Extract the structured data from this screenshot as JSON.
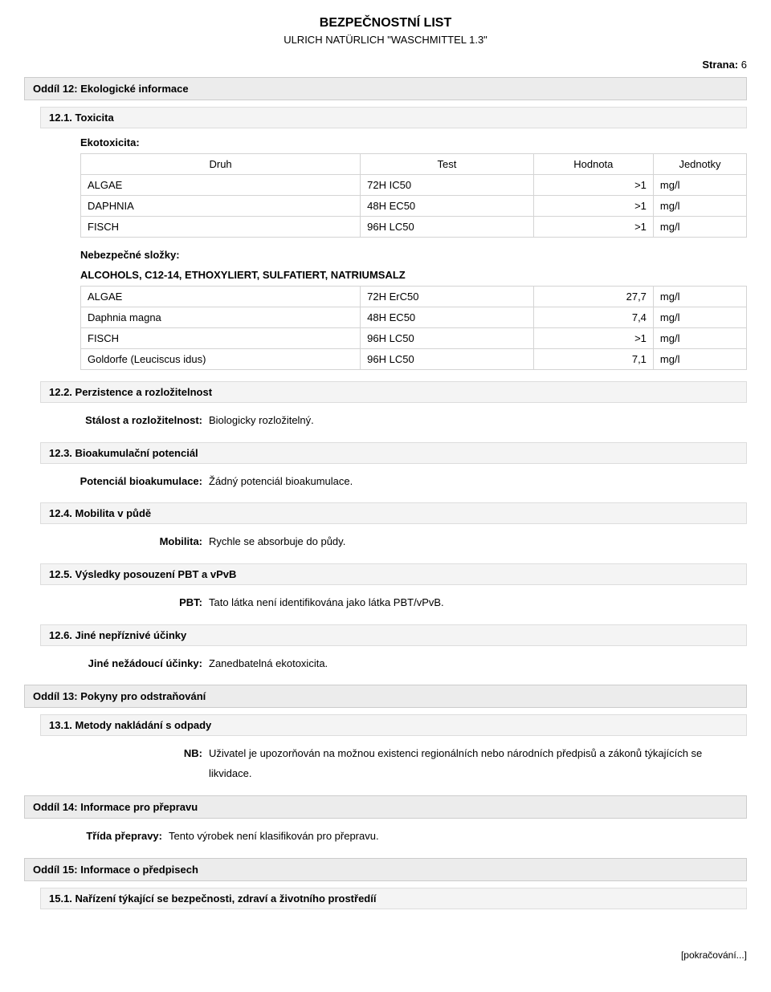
{
  "header": {
    "title": "BEZPEČNOSTNÍ LIST",
    "subtitle": "ULRICH NATÜRLICH \"WASCHMITTEL 1.3\"",
    "page_label": "Strana:",
    "page_number": "6"
  },
  "section12": {
    "title": "Oddíl 12: Ekologické informace",
    "s1": {
      "title": "12.1. Toxicita",
      "eco_label": "Ekotoxicita:",
      "table1": {
        "headers": [
          "Druh",
          "Test",
          "Hodnota",
          "Jednotky"
        ],
        "rows": [
          [
            "ALGAE",
            "72H IC50",
            ">1",
            "mg/l"
          ],
          [
            "DAPHNIA",
            "48H EC50",
            ">1",
            "mg/l"
          ],
          [
            "FISCH",
            "96H LC50",
            ">1",
            "mg/l"
          ]
        ],
        "col_widths": [
          "42%",
          "26%",
          "18%",
          "14%"
        ]
      },
      "hazard_label": "Nebezpečné složky:",
      "substance": "ALCOHOLS, C12-14, ETHOXYLIERT, SULFATIERT, NATRIUMSALZ",
      "table2": {
        "rows": [
          [
            "ALGAE",
            "72H ErC50",
            "27,7",
            "mg/l"
          ],
          [
            "Daphnia magna",
            "48H EC50",
            "7,4",
            "mg/l"
          ],
          [
            "FISCH",
            "96H LC50",
            ">1",
            "mg/l"
          ],
          [
            "Goldorfe (Leuciscus idus)",
            "96H LC50",
            "7,1",
            "mg/l"
          ]
        ],
        "col_widths": [
          "42%",
          "26%",
          "18%",
          "14%"
        ]
      }
    },
    "s2": {
      "title": "12.2. Perzistence a rozložitelnost",
      "label": "Stálost a rozložitelnost:",
      "value": "Biologicky rozložitelný."
    },
    "s3": {
      "title": "12.3. Bioakumulační potenciál",
      "label": "Potenciál bioakumulace:",
      "value": "Žádný potenciál bioakumulace."
    },
    "s4": {
      "title": "12.4. Mobilita v půdě",
      "label": "Mobilita:",
      "value": "Rychle se absorbuje do půdy."
    },
    "s5": {
      "title": "12.5. Výsledky posouzení PBT a vPvB",
      "label": "PBT:",
      "value": "Tato látka není identifikována jako látka PBT/vPvB."
    },
    "s6": {
      "title": "12.6. Jiné nepříznivé účinky",
      "label": "Jiné nežádoucí účinky:",
      "value": "Zanedbatelná ekotoxicita."
    }
  },
  "section13": {
    "title": "Oddíl 13: Pokyny pro odstraňování",
    "s1": {
      "title": "13.1. Metody nakládání s odpady",
      "label": "NB:",
      "value": "Uživatel je upozorňován na možnou existenci regionálních nebo národních předpisů a zákonů týkajících se likvidace."
    }
  },
  "section14": {
    "title": "Oddíl 14: Informace pro přepravu",
    "label": "Třída přepravy:",
    "value": "Tento výrobek není klasifikován pro přepravu."
  },
  "section15": {
    "title": "Oddíl 15: Informace o předpisech",
    "s1": {
      "title": "15.1. Nařízení týkající se bezpečnosti, zdraví a životního prostředíí"
    }
  },
  "footer": {
    "text": "[pokračování...]"
  }
}
